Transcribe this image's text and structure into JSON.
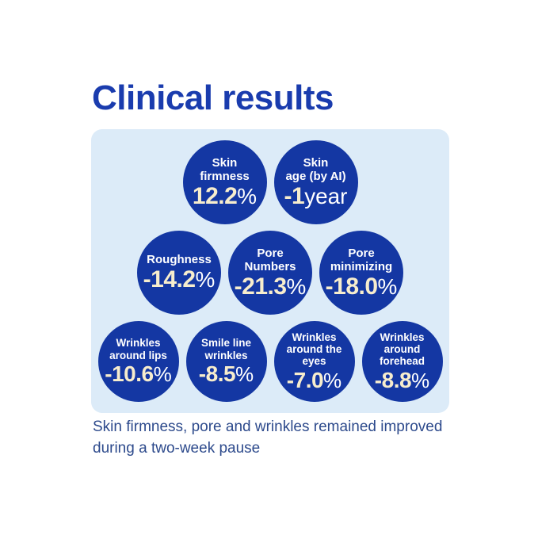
{
  "title": "Clinical results",
  "caption": {
    "line1": "Skin firmness, pore and wrinkles remained improved",
    "line2": "during a two-week pause"
  },
  "colors": {
    "title_blue": "#1a3cae",
    "panel_bg": "#dcebf8",
    "circle_blue": "#1437a3",
    "number_cream": "#f7edcd",
    "label_white": "#ffffff",
    "caption_blue": "#2d4a8c"
  },
  "stats": {
    "rows": [
      [
        {
          "l1": "Skin",
          "l2": "firmness",
          "l3": "",
          "value": "12.2",
          "suffix": "%"
        },
        {
          "l1": "Skin",
          "l2": "age (by AI)",
          "l3": "",
          "value": "-1",
          "suffix": "year"
        }
      ],
      [
        {
          "l1": "Roughness",
          "l2": "",
          "l3": "",
          "value": "-14.2",
          "suffix": "%"
        },
        {
          "l1": "Pore",
          "l2": "Numbers",
          "l3": "",
          "value": "-21.3",
          "suffix": "%"
        },
        {
          "l1": "Pore",
          "l2": "minimizing",
          "l3": "",
          "value": "-18.0",
          "suffix": "%"
        }
      ],
      [
        {
          "l1": "Wrinkles",
          "l2": "around lips",
          "l3": "",
          "value": "-10.6",
          "suffix": "%"
        },
        {
          "l1": "Smile line",
          "l2": "wrinkles",
          "l3": "",
          "value": "-8.5",
          "suffix": "%"
        },
        {
          "l1": "Wrinkles",
          "l2": "around the",
          "l3": "eyes",
          "value": "-7.0",
          "suffix": "%"
        },
        {
          "l1": "Wrinkles",
          "l2": "around",
          "l3": "forehead",
          "value": "-8.8",
          "suffix": "%"
        }
      ]
    ]
  },
  "chart_data": {
    "type": "table",
    "title": "Clinical results",
    "categories": [
      "Skin firmness",
      "Skin age (by AI)",
      "Roughness",
      "Pore Numbers",
      "Pore minimizing",
      "Wrinkles around lips",
      "Smile line wrinkles",
      "Wrinkles around the eyes",
      "Wrinkles around forehead"
    ],
    "values": [
      "12.2%",
      "-1year",
      "-14.2%",
      "-21.3%",
      "-18.0%",
      "-10.6%",
      "-8.5%",
      "-7.0%",
      "-8.8%"
    ],
    "note": "Skin firmness, pore and wrinkles remained improved during a two-week pause",
    "layout": "circular stat badges in 3 rows (2, 3, 4) on light blue rounded panel"
  }
}
